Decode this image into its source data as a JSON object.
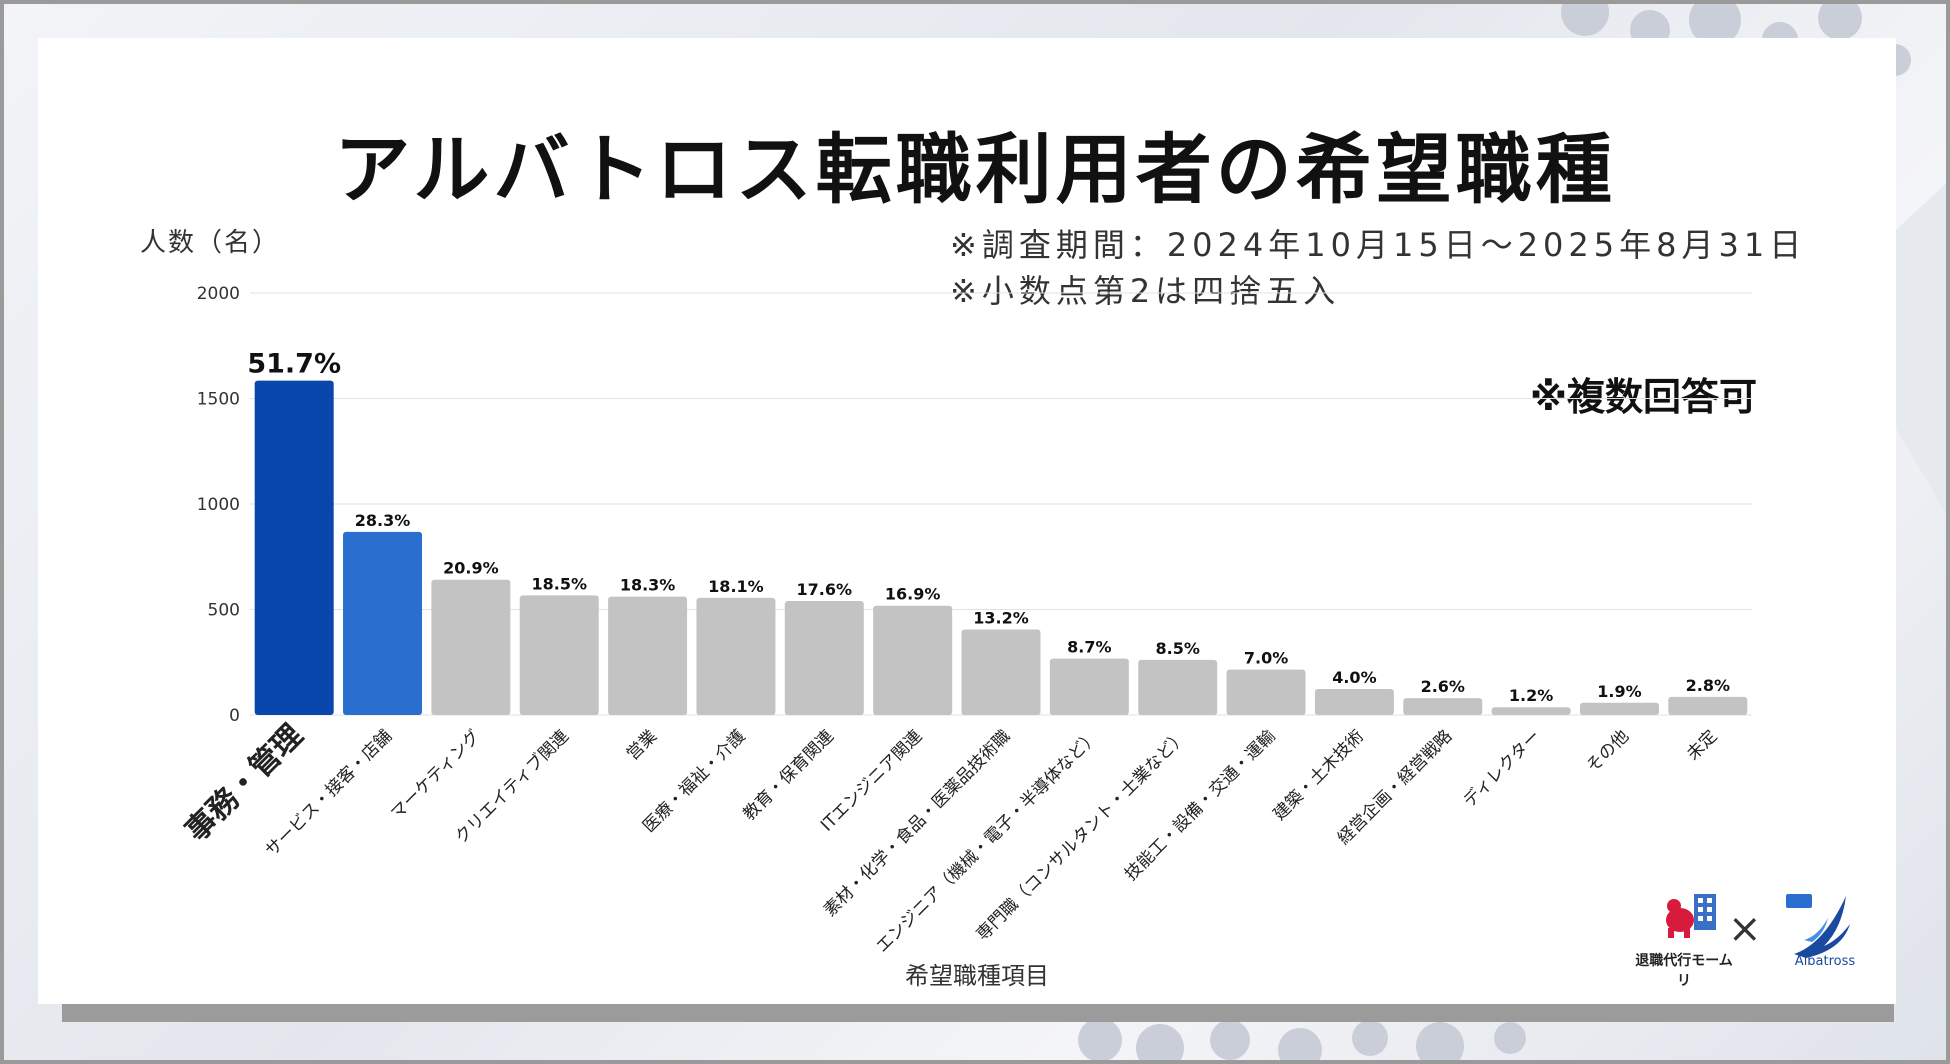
{
  "title": "アルバトロス転職利用者の希望職種",
  "notes": {
    "period": "※調査期間：2024年10月15日～2025年8月31日",
    "rounding": "※小数点第2は四捨五入",
    "multiple": "※複数回答可"
  },
  "logos": {
    "left_text": "退職代行モームリ",
    "times": "×",
    "right_text": "Albatross"
  },
  "colors": {
    "top": "#0a47ad",
    "second": "#2a6fd0",
    "other": "#c3c3c3"
  },
  "chart_data": {
    "type": "bar",
    "ylabel": "人数（名）",
    "xlabel": "希望職種項目",
    "ylim": [
      0,
      2000
    ],
    "yticks": [
      "0",
      "500",
      "1000",
      "1500",
      "2000"
    ],
    "grid": true,
    "categories": [
      "事務・管理",
      "サービス・接客・店舗",
      "マーケティング",
      "クリエイティブ関連",
      "営業",
      "医療・福祉・介護",
      "教育・保育関連",
      "ITエンジニア関連",
      "素材・化学・食品・医薬品技術職",
      "エンジニア（機械・電子・半導体など）",
      "専門職（コンサルタント・士業など）",
      "技能工・設備・交通・運輸",
      "建築・土木技術",
      "経営企画・経営戦略",
      "ディレクター",
      "その他",
      "未定"
    ],
    "values": [
      1585,
      868,
      641,
      567,
      561,
      555,
      540,
      518,
      405,
      267,
      261,
      215,
      123,
      80,
      37,
      58,
      86
    ],
    "data_labels": [
      "51.7%",
      "28.3%",
      "20.9%",
      "18.5%",
      "18.3%",
      "18.1%",
      "17.6%",
      "16.9%",
      "13.2%",
      "8.7%",
      "8.5%",
      "7.0%",
      "4.0%",
      "2.6%",
      "1.2%",
      "1.9%",
      "2.8%"
    ]
  }
}
